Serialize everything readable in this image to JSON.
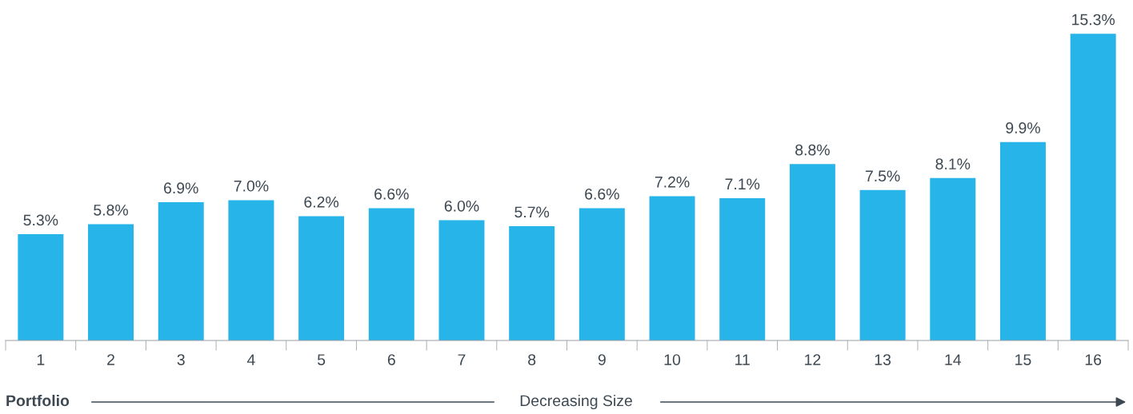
{
  "chart_data": {
    "type": "bar",
    "categories": [
      "1",
      "2",
      "3",
      "4",
      "5",
      "6",
      "7",
      "8",
      "9",
      "10",
      "11",
      "12",
      "13",
      "14",
      "15",
      "16"
    ],
    "values": [
      5.3,
      5.8,
      6.9,
      7.0,
      6.2,
      6.6,
      6.0,
      5.7,
      6.6,
      7.2,
      7.1,
      8.8,
      7.5,
      8.1,
      9.9,
      15.3
    ],
    "value_labels": [
      "5.3%",
      "5.8%",
      "6.9%",
      "7.0%",
      "6.2%",
      "6.6%",
      "6.0%",
      "5.7%",
      "6.6%",
      "7.2%",
      "7.1%",
      "8.8%",
      "7.5%",
      "8.1%",
      "9.9%",
      "15.3%"
    ],
    "color": "#27b5e9",
    "xlabel": "Decreasing Size",
    "annotations": [
      "Portfolio"
    ],
    "grid": false,
    "legend": false
  }
}
